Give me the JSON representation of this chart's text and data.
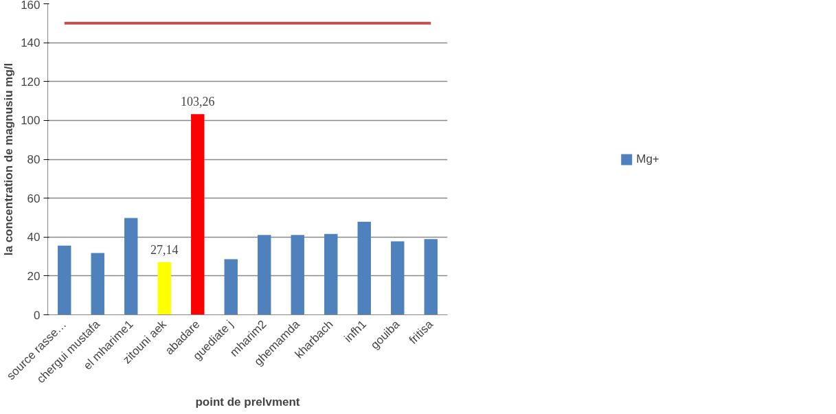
{
  "chart_data": {
    "type": "bar",
    "xlabel": "point de prelvment",
    "ylabel": "la concentration de magnusiu mg/l",
    "categories": [
      "source rasse…",
      "chergui mustafa",
      "el mharime1",
      "zitouni aek",
      "abadare",
      "guediate j",
      "mharim2",
      "ghemamda",
      "kharbach",
      "infh1",
      "gouiba",
      "fritisa"
    ],
    "series": [
      {
        "name": "Mg+",
        "color": "#4f81bd",
        "colors": [
          "#4f81bd",
          "#4f81bd",
          "#4f81bd",
          "#ffff00",
          "#ff0000",
          "#4f81bd",
          "#4f81bd",
          "#4f81bd",
          "#4f81bd",
          "#4f81bd",
          "#4f81bd",
          "#4f81bd"
        ],
        "values": [
          35.6,
          31.8,
          49.8,
          27.14,
          103.26,
          28.6,
          41.1,
          41.1,
          41.6,
          47.9,
          37.8,
          38.9
        ],
        "value_labels": [
          null,
          null,
          null,
          "27,14",
          "103,26",
          null,
          null,
          null,
          null,
          null,
          null,
          null
        ]
      }
    ],
    "ref_lines": [
      {
        "axis": "y",
        "value": 150,
        "color": "#c0504d"
      }
    ],
    "ylim": [
      0,
      160
    ],
    "yticks": [
      0,
      20,
      40,
      60,
      80,
      100,
      120,
      140,
      160
    ],
    "grid": "y",
    "legend": "right"
  }
}
